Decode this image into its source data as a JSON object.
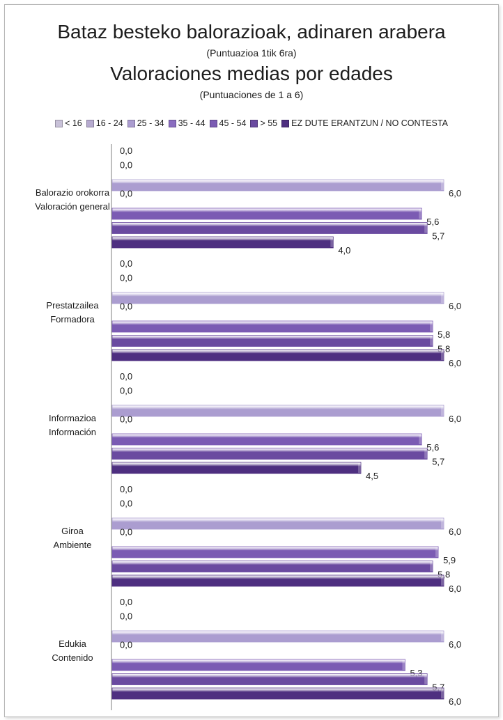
{
  "title_eu": "Bataz besteko balorazioak, adinaren arabera",
  "subtitle_eu": "(Puntuazioa 1tik 6ra)",
  "title_es": "Valoraciones medias por edades",
  "subtitle_es": "(Puntuaciones de 1 a 6)",
  "colors": [
    "#c8c1d8",
    "#b7abd0",
    "#ab9dd0",
    "#8a6dc0",
    "#7b5bb3",
    "#6a4aa0",
    "#4e2f80"
  ],
  "chart_data": {
    "type": "bar",
    "orientation": "horizontal",
    "xlim": [
      0,
      6
    ],
    "grid": false,
    "legend_position": "top",
    "categories": [
      [
        "Balorazio orokorra",
        "Valoración general"
      ],
      [
        "Prestatzailea",
        "Formadora"
      ],
      [
        "Informazioa",
        "Información"
      ],
      [
        "Giroa",
        "Ambiente"
      ],
      [
        "Edukia",
        "Contenido"
      ]
    ],
    "series": [
      {
        "name": "< 16",
        "values": [
          0.0,
          0.0,
          0.0,
          0.0,
          0.0
        ],
        "labels": [
          "0,0",
          "0,0",
          "0,0",
          "0,0",
          "0,0"
        ]
      },
      {
        "name": "16 - 24",
        "values": [
          0.0,
          0.0,
          0.0,
          0.0,
          0.0
        ],
        "labels": [
          "0,0",
          "0,0",
          "0,0",
          "0,0",
          "0,0"
        ]
      },
      {
        "name": "25 - 34",
        "values": [
          6.0,
          6.0,
          6.0,
          6.0,
          6.0
        ],
        "labels": [
          "6,0",
          "6,0",
          "6,0",
          "6,0",
          "6,0"
        ]
      },
      {
        "name": "35 - 44",
        "values": [
          0.0,
          0.0,
          0.0,
          0.0,
          0.0
        ],
        "labels": [
          "0,0",
          "0,0",
          "0,0",
          "0,0",
          "0,0"
        ]
      },
      {
        "name": "45 - 54",
        "values": [
          5.6,
          5.8,
          5.6,
          5.9,
          5.3
        ],
        "labels": [
          "5,6",
          "5,8",
          "5,6",
          "5,9",
          "5,3"
        ]
      },
      {
        "name": "> 55",
        "values": [
          5.7,
          5.8,
          5.7,
          5.8,
          5.7
        ],
        "labels": [
          "5,7",
          "5,8",
          "5,7",
          "5,8",
          "5,7"
        ]
      },
      {
        "name": "EZ DUTE ERANTZUN  / NO CONTESTA",
        "values": [
          4.0,
          6.0,
          4.5,
          6.0,
          6.0
        ],
        "labels": [
          "4,0",
          "6,0",
          "4,5",
          "6,0",
          "6,0"
        ]
      }
    ]
  }
}
